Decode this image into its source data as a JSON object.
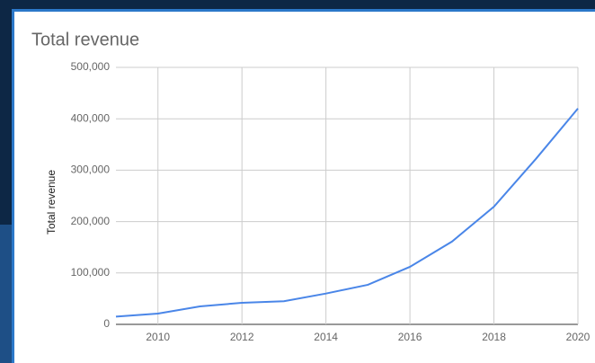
{
  "chart_data": {
    "type": "line",
    "title": "Total revenue",
    "y_label": "Total revenue",
    "x": [
      2009,
      2010,
      2011,
      2012,
      2013,
      2014,
      2015,
      2016,
      2017,
      2018,
      2019,
      2020
    ],
    "series": [
      {
        "name": "Total revenue",
        "color": "#4a86e8",
        "values": [
          15000,
          21000,
          35000,
          42000,
          45000,
          60000,
          77000,
          112000,
          161000,
          229000,
          322000,
          420000
        ]
      }
    ],
    "xlim": [
      2009,
      2020
    ],
    "xticks": [
      2010,
      2012,
      2014,
      2016,
      2018,
      2020
    ],
    "ylim": [
      0,
      500000
    ],
    "yticks": [
      0,
      {
        "value": 100000,
        "label": "100,000"
      },
      {
        "value": 200000,
        "label": "200,000"
      },
      {
        "value": 300000,
        "label": "300,000"
      },
      {
        "value": 400000,
        "label": "400,000"
      },
      {
        "value": 500000,
        "label": "500,000"
      }
    ],
    "grid": true
  }
}
